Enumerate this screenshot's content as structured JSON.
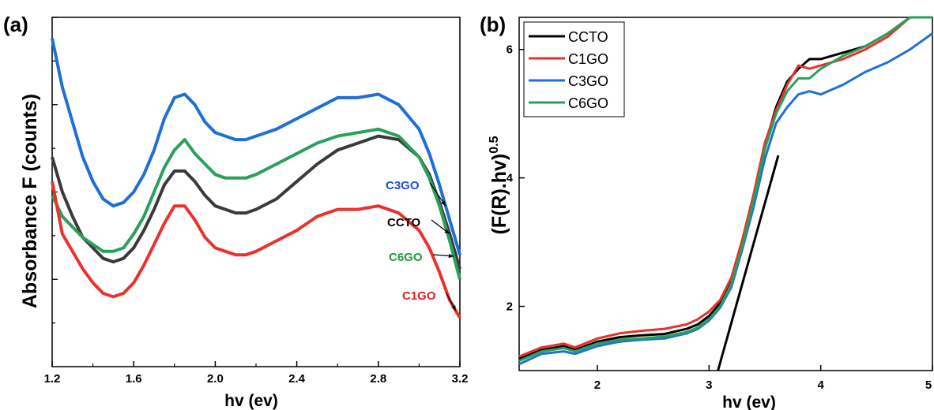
{
  "chart_data": [
    {
      "panel": "(a)",
      "type": "line",
      "xlabel": "hv (ev)",
      "ylabel": "Absorbance F (counts)",
      "xlim": [
        1.2,
        3.2
      ],
      "ylim": [
        0,
        1
      ],
      "x_ticks": [
        "1.2",
        "1.6",
        "2.0",
        "2.4",
        "2.8",
        "3.2"
      ],
      "y_ticks_labeled": false,
      "grid": false,
      "legend": "none",
      "annotations": [
        {
          "text": "C3GO",
          "color": "#1f4fd6"
        },
        {
          "text": "CCTO",
          "color": "#000000"
        },
        {
          "text": "C6GO",
          "color": "#1f9a3a"
        },
        {
          "text": "C1GO",
          "color": "#e0201e"
        }
      ],
      "x": [
        1.2,
        1.25,
        1.3,
        1.35,
        1.4,
        1.45,
        1.5,
        1.55,
        1.6,
        1.65,
        1.7,
        1.75,
        1.8,
        1.85,
        1.9,
        1.95,
        2.0,
        2.05,
        2.1,
        2.15,
        2.2,
        2.3,
        2.4,
        2.5,
        2.6,
        2.7,
        2.8,
        2.9,
        3.0,
        3.05,
        3.1,
        3.15,
        3.2
      ],
      "series": [
        {
          "name": "C3GO",
          "color": "#1f6fd6",
          "values": [
            0.94,
            0.8,
            0.7,
            0.6,
            0.53,
            0.48,
            0.46,
            0.47,
            0.5,
            0.55,
            0.62,
            0.71,
            0.77,
            0.78,
            0.75,
            0.7,
            0.67,
            0.66,
            0.65,
            0.65,
            0.66,
            0.68,
            0.71,
            0.74,
            0.77,
            0.77,
            0.78,
            0.75,
            0.68,
            0.61,
            0.52,
            0.42,
            0.32
          ]
        },
        {
          "name": "CCTO",
          "color": "#3a3a3a",
          "values": [
            0.6,
            0.5,
            0.43,
            0.37,
            0.34,
            0.31,
            0.3,
            0.31,
            0.34,
            0.39,
            0.45,
            0.52,
            0.56,
            0.56,
            0.53,
            0.49,
            0.46,
            0.45,
            0.44,
            0.44,
            0.45,
            0.48,
            0.53,
            0.58,
            0.62,
            0.64,
            0.66,
            0.65,
            0.6,
            0.55,
            0.47,
            0.38,
            0.28
          ]
        },
        {
          "name": "C6GO",
          "color": "#2aa05a",
          "values": [
            0.49,
            0.43,
            0.4,
            0.37,
            0.35,
            0.33,
            0.33,
            0.34,
            0.38,
            0.43,
            0.5,
            0.57,
            0.62,
            0.65,
            0.61,
            0.58,
            0.55,
            0.54,
            0.54,
            0.54,
            0.55,
            0.58,
            0.61,
            0.64,
            0.66,
            0.67,
            0.68,
            0.66,
            0.6,
            0.54,
            0.46,
            0.36,
            0.25
          ]
        },
        {
          "name": "C1GO",
          "color": "#e8322e",
          "values": [
            0.53,
            0.38,
            0.33,
            0.28,
            0.24,
            0.21,
            0.2,
            0.21,
            0.24,
            0.29,
            0.35,
            0.41,
            0.46,
            0.46,
            0.42,
            0.37,
            0.34,
            0.33,
            0.32,
            0.32,
            0.33,
            0.36,
            0.39,
            0.43,
            0.45,
            0.45,
            0.46,
            0.44,
            0.39,
            0.34,
            0.27,
            0.19,
            0.14
          ]
        }
      ]
    },
    {
      "panel": "(b)",
      "type": "line",
      "xlabel": "hv (ev)",
      "ylabel": "(F(R).hv)",
      "ylabel_superscript": "0.5",
      "xlim": [
        1.3,
        5.0
      ],
      "ylim": [
        1.0,
        6.5
      ],
      "x_ticks": [
        "2",
        "3",
        "4",
        "5"
      ],
      "y_ticks": [
        "2",
        "4",
        "6"
      ],
      "grid": false,
      "legend": "top-left",
      "x": [
        1.3,
        1.5,
        1.7,
        1.8,
        2.0,
        2.2,
        2.4,
        2.6,
        2.8,
        2.9,
        3.0,
        3.1,
        3.2,
        3.3,
        3.4,
        3.5,
        3.6,
        3.7,
        3.8,
        3.9,
        4.0,
        4.2,
        4.4,
        4.6,
        4.8,
        5.0
      ],
      "series": [
        {
          "name": "CCTO",
          "color": "#000000",
          "values": [
            1.18,
            1.32,
            1.38,
            1.32,
            1.45,
            1.52,
            1.55,
            1.57,
            1.65,
            1.72,
            1.85,
            2.05,
            2.4,
            3.0,
            3.7,
            4.5,
            5.1,
            5.5,
            5.7,
            5.85,
            5.85,
            5.95,
            6.05,
            6.25,
            6.5,
            6.8
          ]
        },
        {
          "name": "C1GO",
          "color": "#e8322e",
          "values": [
            1.22,
            1.36,
            1.42,
            1.36,
            1.5,
            1.58,
            1.62,
            1.65,
            1.72,
            1.8,
            1.92,
            2.1,
            2.45,
            3.05,
            3.75,
            4.55,
            5.05,
            5.45,
            5.75,
            5.7,
            5.75,
            5.85,
            6.0,
            6.2,
            6.5,
            6.8
          ]
        },
        {
          "name": "C3GO",
          "color": "#1f6fd6",
          "values": [
            1.1,
            1.26,
            1.3,
            1.26,
            1.38,
            1.45,
            1.48,
            1.5,
            1.58,
            1.65,
            1.78,
            1.98,
            2.3,
            2.9,
            3.55,
            4.3,
            4.85,
            5.1,
            5.3,
            5.35,
            5.3,
            5.45,
            5.65,
            5.8,
            6.0,
            6.25
          ]
        },
        {
          "name": "C6GO",
          "color": "#2aa05a",
          "values": [
            1.15,
            1.3,
            1.35,
            1.3,
            1.42,
            1.48,
            1.5,
            1.53,
            1.6,
            1.67,
            1.8,
            2.0,
            2.35,
            2.95,
            3.65,
            4.45,
            5.0,
            5.35,
            5.55,
            5.55,
            5.7,
            5.9,
            6.05,
            6.25,
            6.5,
            6.8
          ]
        }
      ],
      "tangent": {
        "x": [
          3.08,
          3.62
        ],
        "y": [
          1.0,
          4.35
        ],
        "color": "#000000"
      }
    }
  ]
}
